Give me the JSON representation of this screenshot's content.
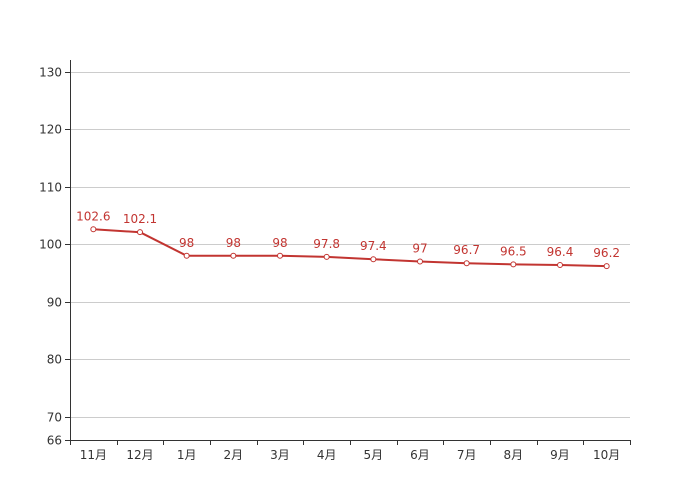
{
  "chart_data": {
    "type": "line",
    "categories": [
      "11月",
      "12月",
      "1月",
      "2月",
      "3月",
      "4月",
      "5月",
      "6月",
      "7月",
      "8月",
      "9月",
      "10月"
    ],
    "series": [
      {
        "values": [
          102.6,
          102.1,
          98,
          98,
          98,
          97.8,
          97.4,
          97,
          96.7,
          96.5,
          96.4,
          96.2
        ],
        "color": "#c23531"
      }
    ],
    "ylim": [
      66,
      132
    ],
    "yticks": [
      66,
      70,
      80,
      90,
      100,
      110,
      120,
      130
    ],
    "grid": true,
    "data_labels": true,
    "legend": "none"
  }
}
